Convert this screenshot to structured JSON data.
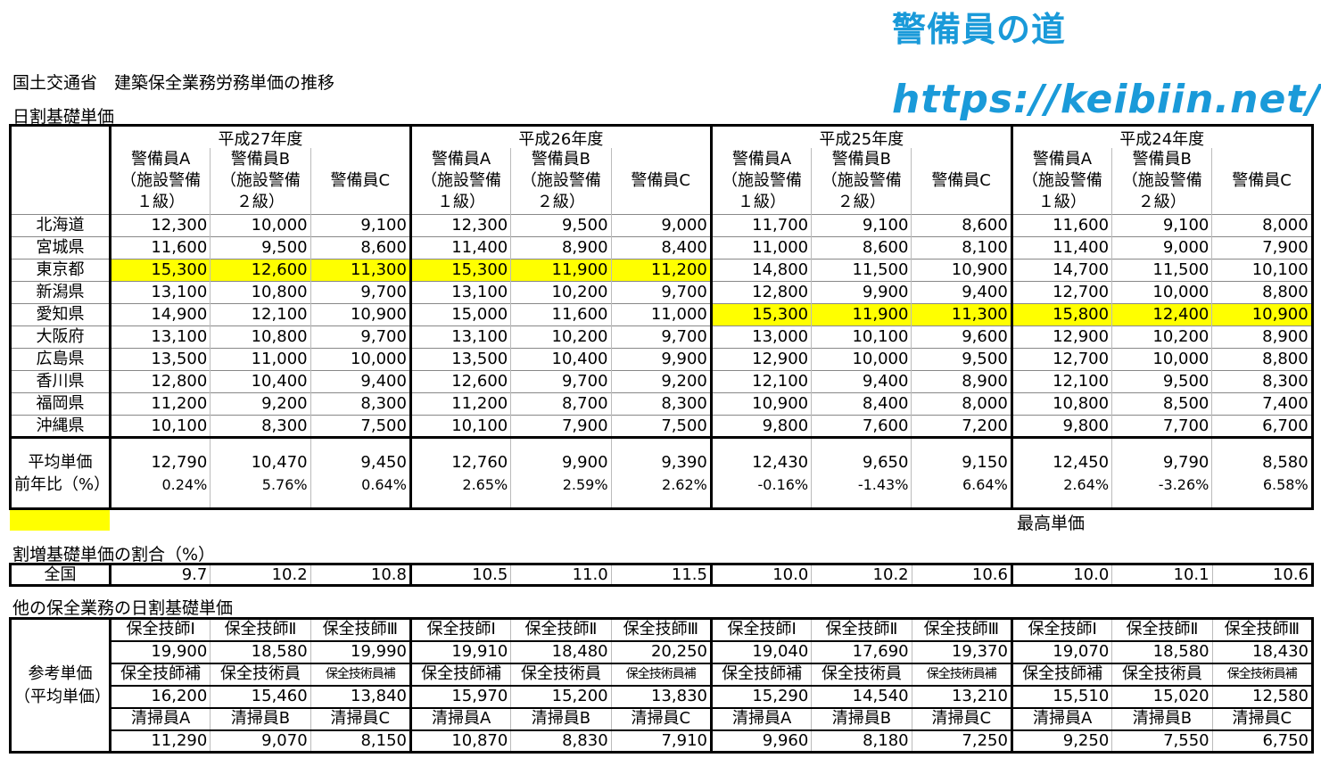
{
  "branding": {
    "title": "警備員の道",
    "url": "https://keibiin.net/"
  },
  "headings": {
    "main_title": "国土交通省　建築保全業務労務単価の推移",
    "daily_rate": "日割基礎単価",
    "premium_ratio": "割増基礎単価の割合（%）",
    "other_services": "他の保全業務の日割基礎単価"
  },
  "legend": {
    "highlight_color": "#ffff00",
    "label": "最高単価"
  },
  "years": [
    "平成27年度",
    "平成26年度",
    "平成25年度",
    "平成24年度"
  ],
  "sub_headers": [
    "警備員A（施設警備1級）",
    "警備員B（施設警備2級）",
    "警備員C"
  ],
  "sub_header_lines": {
    "a": [
      "警備員A",
      "（施設警備",
      "１級）"
    ],
    "b": [
      "警備員B",
      "（施設警備",
      "２級）"
    ],
    "c": "警備員C"
  },
  "rows": [
    {
      "region": "北海道",
      "values": [
        "12,300",
        "10,000",
        "9,100",
        "12,300",
        "9,500",
        "9,000",
        "11,700",
        "9,100",
        "8,600",
        "11,600",
        "9,100",
        "8,000"
      ]
    },
    {
      "region": "宮城県",
      "values": [
        "11,600",
        "9,500",
        "8,600",
        "11,400",
        "8,900",
        "8,400",
        "11,000",
        "8,600",
        "8,100",
        "11,400",
        "9,000",
        "7,900"
      ]
    },
    {
      "region": "東京都",
      "values": [
        "15,300",
        "12,600",
        "11,300",
        "15,300",
        "11,900",
        "11,200",
        "14,800",
        "11,500",
        "10,900",
        "14,700",
        "11,500",
        "10,100"
      ]
    },
    {
      "region": "新潟県",
      "values": [
        "13,100",
        "10,800",
        "9,700",
        "13,100",
        "10,200",
        "9,700",
        "12,800",
        "9,900",
        "9,400",
        "12,700",
        "10,000",
        "8,800"
      ]
    },
    {
      "region": "愛知県",
      "values": [
        "14,900",
        "12,100",
        "10,900",
        "15,000",
        "11,600",
        "11,000",
        "15,300",
        "11,900",
        "11,300",
        "15,800",
        "12,400",
        "10,900"
      ]
    },
    {
      "region": "大阪府",
      "values": [
        "13,100",
        "10,800",
        "9,700",
        "13,100",
        "10,200",
        "9,700",
        "13,000",
        "10,100",
        "9,600",
        "12,900",
        "10,200",
        "8,900"
      ]
    },
    {
      "region": "広島県",
      "values": [
        "13,500",
        "11,000",
        "10,000",
        "13,500",
        "10,400",
        "9,900",
        "12,900",
        "10,000",
        "9,500",
        "12,700",
        "10,000",
        "8,800"
      ]
    },
    {
      "region": "香川県",
      "values": [
        "12,800",
        "10,400",
        "9,400",
        "12,600",
        "9,700",
        "9,200",
        "12,100",
        "9,400",
        "8,900",
        "12,100",
        "9,500",
        "8,300"
      ]
    },
    {
      "region": "福岡県",
      "values": [
        "11,200",
        "9,200",
        "8,300",
        "11,200",
        "8,700",
        "8,300",
        "10,900",
        "8,400",
        "8,000",
        "10,800",
        "8,500",
        "7,400"
      ]
    },
    {
      "region": "沖縄県",
      "values": [
        "10,100",
        "8,300",
        "7,500",
        "10,100",
        "7,900",
        "7,500",
        "9,800",
        "7,600",
        "7,200",
        "9,800",
        "7,700",
        "6,700"
      ]
    }
  ],
  "average": {
    "label": "平均単価",
    "values": [
      "12,790",
      "10,470",
      "9,450",
      "12,760",
      "9,900",
      "9,390",
      "12,430",
      "9,650",
      "9,150",
      "12,450",
      "9,790",
      "8,580"
    ]
  },
  "yoy": {
    "label": "前年比（%）",
    "values": [
      "0.24%",
      "5.76%",
      "0.64%",
      "2.65%",
      "2.59%",
      "2.62%",
      "-0.16%",
      "-1.43%",
      "6.64%",
      "2.64%",
      "-3.26%",
      "6.58%"
    ]
  },
  "ratio": {
    "label": "全国",
    "values": [
      "9.7",
      "10.2",
      "10.8",
      "10.5",
      "11.0",
      "11.5",
      "10.0",
      "10.2",
      "10.6",
      "10.0",
      "10.1",
      "10.6"
    ]
  },
  "other": {
    "label_line1": "参考単価",
    "label_line2": "（平均単価）",
    "groups": [
      {
        "labels": [
          "保全技師Ⅰ",
          "保全技師Ⅱ",
          "保全技師Ⅲ",
          "保全技師Ⅰ",
          "保全技師Ⅱ",
          "保全技師Ⅲ",
          "保全技師Ⅰ",
          "保全技師Ⅱ",
          "保全技師Ⅲ",
          "保全技師Ⅰ",
          "保全技師Ⅱ",
          "保全技師Ⅲ"
        ],
        "values": [
          "19,900",
          "18,580",
          "19,990",
          "19,910",
          "18,480",
          "20,250",
          "19,040",
          "17,690",
          "19,370",
          "19,070",
          "18,580",
          "18,430"
        ]
      },
      {
        "labels": [
          "保全技師補",
          "保全技術員",
          "保全技術員補",
          "保全技師補",
          "保全技術員",
          "保全技術員補",
          "保全技師補",
          "保全技術員",
          "保全技術員補",
          "保全技師補",
          "保全技術員",
          "保全技術員補"
        ],
        "values": [
          "16,200",
          "15,460",
          "13,840",
          "15,970",
          "15,200",
          "13,830",
          "15,290",
          "14,540",
          "13,210",
          "15,510",
          "15,020",
          "12,580"
        ]
      },
      {
        "labels": [
          "清掃員A",
          "清掃員B",
          "清掃員C",
          "清掃員A",
          "清掃員B",
          "清掃員C",
          "清掃員A",
          "清掃員B",
          "清掃員C",
          "清掃員A",
          "清掃員B",
          "清掃員C"
        ],
        "values": [
          "11,290",
          "9,070",
          "8,150",
          "10,870",
          "8,830",
          "7,910",
          "9,960",
          "8,180",
          "7,250",
          "9,250",
          "7,550",
          "6,750"
        ]
      }
    ]
  },
  "highlights": [
    {
      "row": 2,
      "cols": [
        0,
        1,
        2,
        3,
        4,
        5
      ]
    },
    {
      "row": 4,
      "cols": [
        6,
        7,
        8,
        9,
        10,
        11
      ]
    }
  ]
}
